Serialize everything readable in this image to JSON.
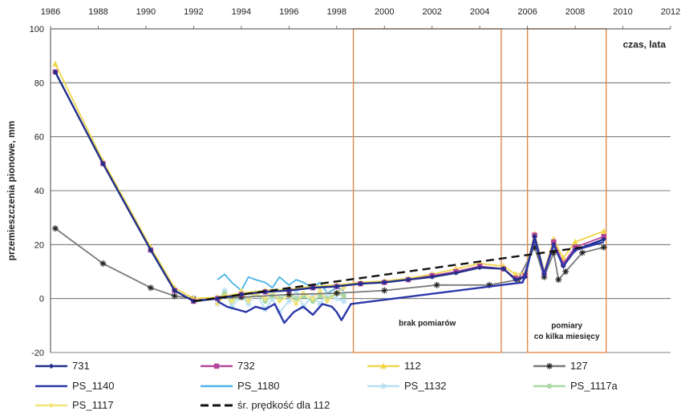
{
  "chart_data": {
    "type": "line",
    "ylabel": "przemieszczenia pionowe, mm",
    "xlabel": "czas, lata",
    "xlim": [
      1986,
      2012
    ],
    "ylim": [
      -20,
      100
    ],
    "x_ticks": [
      1986,
      1988,
      1990,
      1992,
      1994,
      1996,
      1998,
      2000,
      2002,
      2004,
      2006,
      2008,
      2010,
      2012
    ],
    "y_ticks": [
      -20,
      0,
      20,
      40,
      60,
      80,
      100
    ],
    "grid": true,
    "annotations": [
      {
        "text": "brak pomiarów",
        "x_range": [
          1998.7,
          2004.9
        ],
        "y_range": [
          -20,
          100
        ]
      },
      {
        "text": "pomiary co kilka miesięcy",
        "x_range": [
          2006.0,
          2009.3
        ],
        "y_range": [
          -20,
          100
        ]
      }
    ],
    "series": [
      {
        "name": "731",
        "color": "#1f2f8a",
        "marker": "diamond",
        "points": [
          [
            1986.2,
            84
          ],
          [
            1988.2,
            50
          ],
          [
            1990.2,
            18
          ],
          [
            1991.2,
            3
          ],
          [
            1992.0,
            -1
          ],
          [
            1993,
            0
          ],
          [
            1994,
            1.5
          ],
          [
            1995,
            2.5
          ],
          [
            1996,
            3
          ],
          [
            1997,
            4
          ],
          [
            1998,
            4.5
          ],
          [
            1999,
            5.5
          ],
          [
            2000,
            6
          ],
          [
            2001,
            7
          ],
          [
            2002,
            8
          ],
          [
            2003,
            9.5
          ],
          [
            2004,
            11.5
          ],
          [
            2005,
            11
          ],
          [
            2005.5,
            7
          ],
          [
            2005.9,
            8
          ],
          [
            2006.3,
            23
          ],
          [
            2006.7,
            9
          ],
          [
            2007.1,
            20
          ],
          [
            2007.5,
            12
          ],
          [
            2008,
            18
          ],
          [
            2009.2,
            22
          ]
        ]
      },
      {
        "name": "732",
        "color": "#b5449a",
        "marker": "square",
        "points": [
          [
            1986.2,
            84
          ],
          [
            1988.2,
            50
          ],
          [
            1990.2,
            18
          ],
          [
            1991.2,
            3
          ],
          [
            1992.0,
            -1
          ],
          [
            1993,
            0
          ],
          [
            1994,
            1.5
          ],
          [
            1995,
            2.5
          ],
          [
            1996,
            3
          ],
          [
            1997,
            4
          ],
          [
            1998,
            4.5
          ],
          [
            1999,
            5.5
          ],
          [
            2000,
            6
          ],
          [
            2001,
            7
          ],
          [
            2002,
            8.5
          ],
          [
            2003,
            10
          ],
          [
            2004,
            12
          ],
          [
            2005,
            11
          ],
          [
            2005.5,
            7.5
          ],
          [
            2005.9,
            8.5
          ],
          [
            2006.3,
            23.5
          ],
          [
            2006.7,
            9.5
          ],
          [
            2007.1,
            21
          ],
          [
            2007.5,
            13
          ],
          [
            2008,
            19
          ],
          [
            2009.2,
            23
          ]
        ]
      },
      {
        "name": "112",
        "color": "#f0d64a",
        "marker": "triangle",
        "points": [
          [
            1986.2,
            87
          ],
          [
            1988.2,
            51
          ],
          [
            1990.2,
            19
          ],
          [
            1991.2,
            4
          ],
          [
            1992.0,
            0
          ],
          [
            1993,
            0.5
          ],
          [
            1994,
            2
          ],
          [
            1995,
            3
          ],
          [
            1996,
            3.5
          ],
          [
            1997,
            4.5
          ],
          [
            1998,
            5
          ],
          [
            1999,
            6
          ],
          [
            2000,
            6.5
          ],
          [
            2001,
            7.5
          ],
          [
            2002,
            9
          ],
          [
            2003,
            11
          ],
          [
            2004,
            13
          ],
          [
            2005,
            12
          ],
          [
            2005.5,
            9
          ],
          [
            2005.9,
            9.5
          ],
          [
            2006.3,
            24
          ],
          [
            2006.7,
            10
          ],
          [
            2007.1,
            22
          ],
          [
            2007.5,
            15
          ],
          [
            2008,
            21
          ],
          [
            2009.2,
            25
          ]
        ]
      },
      {
        "name": "127",
        "color": "#7a7a7a",
        "marker": "star",
        "points": [
          [
            1986.2,
            26
          ],
          [
            1988.2,
            13
          ],
          [
            1990.2,
            4
          ],
          [
            1991.2,
            1
          ],
          [
            1992.0,
            0
          ],
          [
            1994,
            0.5
          ],
          [
            1996,
            1.5
          ],
          [
            1998,
            2
          ],
          [
            2000,
            3
          ],
          [
            2002.2,
            5
          ],
          [
            2004.4,
            5
          ],
          [
            2005.6,
            7
          ],
          [
            2006.3,
            19
          ],
          [
            2006.7,
            8
          ],
          [
            2007.1,
            17
          ],
          [
            2007.3,
            7
          ],
          [
            2007.6,
            10
          ],
          [
            2008.3,
            17
          ],
          [
            2009.2,
            19
          ]
        ]
      },
      {
        "name": "PS_1140",
        "color": "#2a37a8",
        "marker": "none",
        "points": [
          [
            1993.0,
            -1
          ],
          [
            1993.4,
            -3
          ],
          [
            1993.8,
            -4
          ],
          [
            1994.2,
            -5
          ],
          [
            1994.6,
            -3
          ],
          [
            1995.0,
            -4
          ],
          [
            1995.4,
            -2
          ],
          [
            1995.8,
            -9
          ],
          [
            1996.2,
            -5
          ],
          [
            1996.6,
            -3
          ],
          [
            1997.0,
            -6
          ],
          [
            1997.4,
            -2
          ],
          [
            1997.8,
            -3
          ],
          [
            1998.0,
            -5
          ],
          [
            1998.2,
            -8
          ],
          [
            1998.4,
            -5
          ],
          [
            1998.6,
            -2
          ],
          [
            2005.8,
            6
          ],
          [
            2006.3,
            22
          ],
          [
            2006.7,
            9
          ],
          [
            2007.1,
            20
          ],
          [
            2007.5,
            12
          ],
          [
            2008,
            18
          ],
          [
            2009.2,
            21
          ]
        ]
      },
      {
        "name": "PS_1180",
        "color": "#4ab3e6",
        "marker": "none",
        "points": [
          [
            1993.0,
            7
          ],
          [
            1993.3,
            9
          ],
          [
            1993.6,
            6
          ],
          [
            1994.0,
            3
          ],
          [
            1994.3,
            8
          ],
          [
            1994.6,
            7
          ],
          [
            1995.0,
            6
          ],
          [
            1995.3,
            4
          ],
          [
            1995.6,
            8
          ],
          [
            1996.0,
            5
          ],
          [
            1996.3,
            7
          ],
          [
            1996.6,
            6
          ],
          [
            1997.0,
            4
          ],
          [
            1997.3,
            6
          ],
          [
            1997.6,
            2
          ],
          [
            1998.0,
            4
          ],
          [
            1998.3,
            3
          ]
        ]
      },
      {
        "name": "PS_1132",
        "color": "#b7dff2",
        "marker": "asterisk",
        "points": [
          [
            1993.0,
            -2
          ],
          [
            1993.3,
            3
          ],
          [
            1993.6,
            -3
          ],
          [
            1994.0,
            1
          ],
          [
            1994.3,
            -2
          ],
          [
            1994.6,
            2
          ],
          [
            1995.0,
            -4
          ],
          [
            1995.3,
            0
          ],
          [
            1995.6,
            -5
          ],
          [
            1996.0,
            -1
          ],
          [
            1996.3,
            3
          ],
          [
            1996.6,
            -3
          ],
          [
            1997.0,
            1
          ],
          [
            1997.3,
            -2
          ],
          [
            1997.6,
            2
          ],
          [
            1998.0,
            0
          ],
          [
            1998.3,
            -1
          ]
        ]
      },
      {
        "name": "PS_1117a",
        "color": "#a9d8a3",
        "marker": "circle",
        "points": [
          [
            1993.0,
            0
          ],
          [
            1993.3,
            2
          ],
          [
            1993.6,
            -1
          ],
          [
            1994.0,
            1
          ],
          [
            1994.3,
            0
          ],
          [
            1994.6,
            2
          ],
          [
            1995.0,
            -1
          ],
          [
            1995.3,
            1
          ],
          [
            1995.6,
            0
          ],
          [
            1996.0,
            2
          ],
          [
            1996.3,
            0
          ],
          [
            1996.6,
            1
          ],
          [
            1997.0,
            -1
          ],
          [
            1997.3,
            1
          ],
          [
            1997.6,
            0
          ],
          [
            1998.0,
            2
          ],
          [
            1998.3,
            1
          ]
        ]
      },
      {
        "name": "PS_1117",
        "color": "#f2e27a",
        "marker": "diamond",
        "points": [
          [
            1993.0,
            -2
          ],
          [
            1993.3,
            1
          ],
          [
            1993.6,
            -1
          ],
          [
            1994.0,
            3
          ],
          [
            1994.3,
            -1
          ],
          [
            1994.6,
            2
          ],
          [
            1995.0,
            0
          ],
          [
            1995.3,
            3
          ],
          [
            1995.6,
            -1
          ],
          [
            1996.0,
            1
          ],
          [
            1996.3,
            -2
          ],
          [
            1996.6,
            2
          ],
          [
            1997.0,
            0
          ],
          [
            1997.3,
            3
          ],
          [
            1997.6,
            -1
          ],
          [
            1998.0,
            2
          ],
          [
            1998.3,
            4
          ]
        ]
      },
      {
        "name": "śr. prędkość dla 112",
        "color": "#111111",
        "marker": "none",
        "dashed": true,
        "points": [
          [
            1992.0,
            -1
          ],
          [
            2008.3,
            19
          ]
        ]
      }
    ]
  }
}
